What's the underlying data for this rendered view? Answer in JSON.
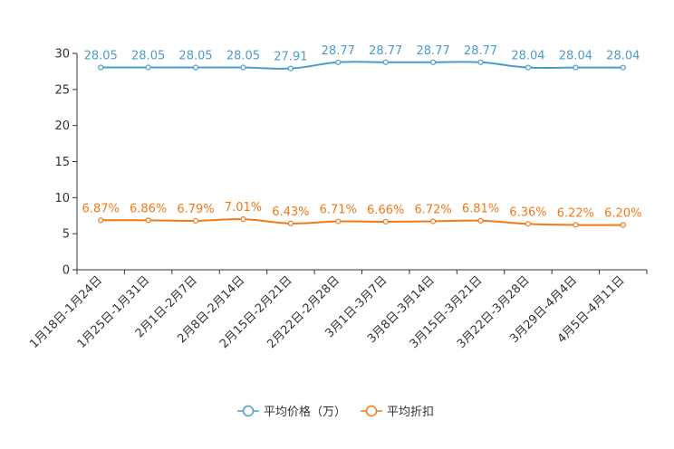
{
  "chart_data": {
    "type": "line",
    "title": "",
    "xlabel": "",
    "ylabel": "",
    "ylim": [
      0,
      30
    ],
    "yticks": [
      0,
      5,
      10,
      15,
      20,
      25,
      30
    ],
    "categories": [
      "1月18日-1月24日",
      "1月25日-1月31日",
      "2月1日-2月7日",
      "2月8日-2月14日",
      "2月15日-2月21日",
      "2月22日-2月28日",
      "3月1日-3月7日",
      "3月8日-3月14日",
      "3月15日-3月21日",
      "3月22日-3月28日",
      "3月29日-4月4日",
      "4月5日-4月11日"
    ],
    "series": [
      {
        "name": "平均价格（万）",
        "color": "#4a9cc9",
        "values": [
          28.05,
          28.05,
          28.05,
          28.05,
          27.91,
          28.77,
          28.77,
          28.77,
          28.77,
          28.04,
          28.04,
          28.04
        ],
        "labels": [
          "28.05",
          "28.05",
          "28.05",
          "28.05",
          "27.91",
          "28.77",
          "28.77",
          "28.77",
          "28.77",
          "28.04",
          "28.04",
          "28.04"
        ]
      },
      {
        "name": "平均折扣",
        "color": "#f07a1a",
        "values": [
          6.87,
          6.86,
          6.79,
          7.01,
          6.43,
          6.71,
          6.66,
          6.72,
          6.81,
          6.36,
          6.22,
          6.2
        ],
        "labels": [
          "6.87%",
          "6.86%",
          "6.79%",
          "7.01%",
          "6.43%",
          "6.71%",
          "6.66%",
          "6.72%",
          "6.81%",
          "6.36%",
          "6.22%",
          "6.20%"
        ]
      }
    ],
    "legend_position": "bottom-center"
  }
}
